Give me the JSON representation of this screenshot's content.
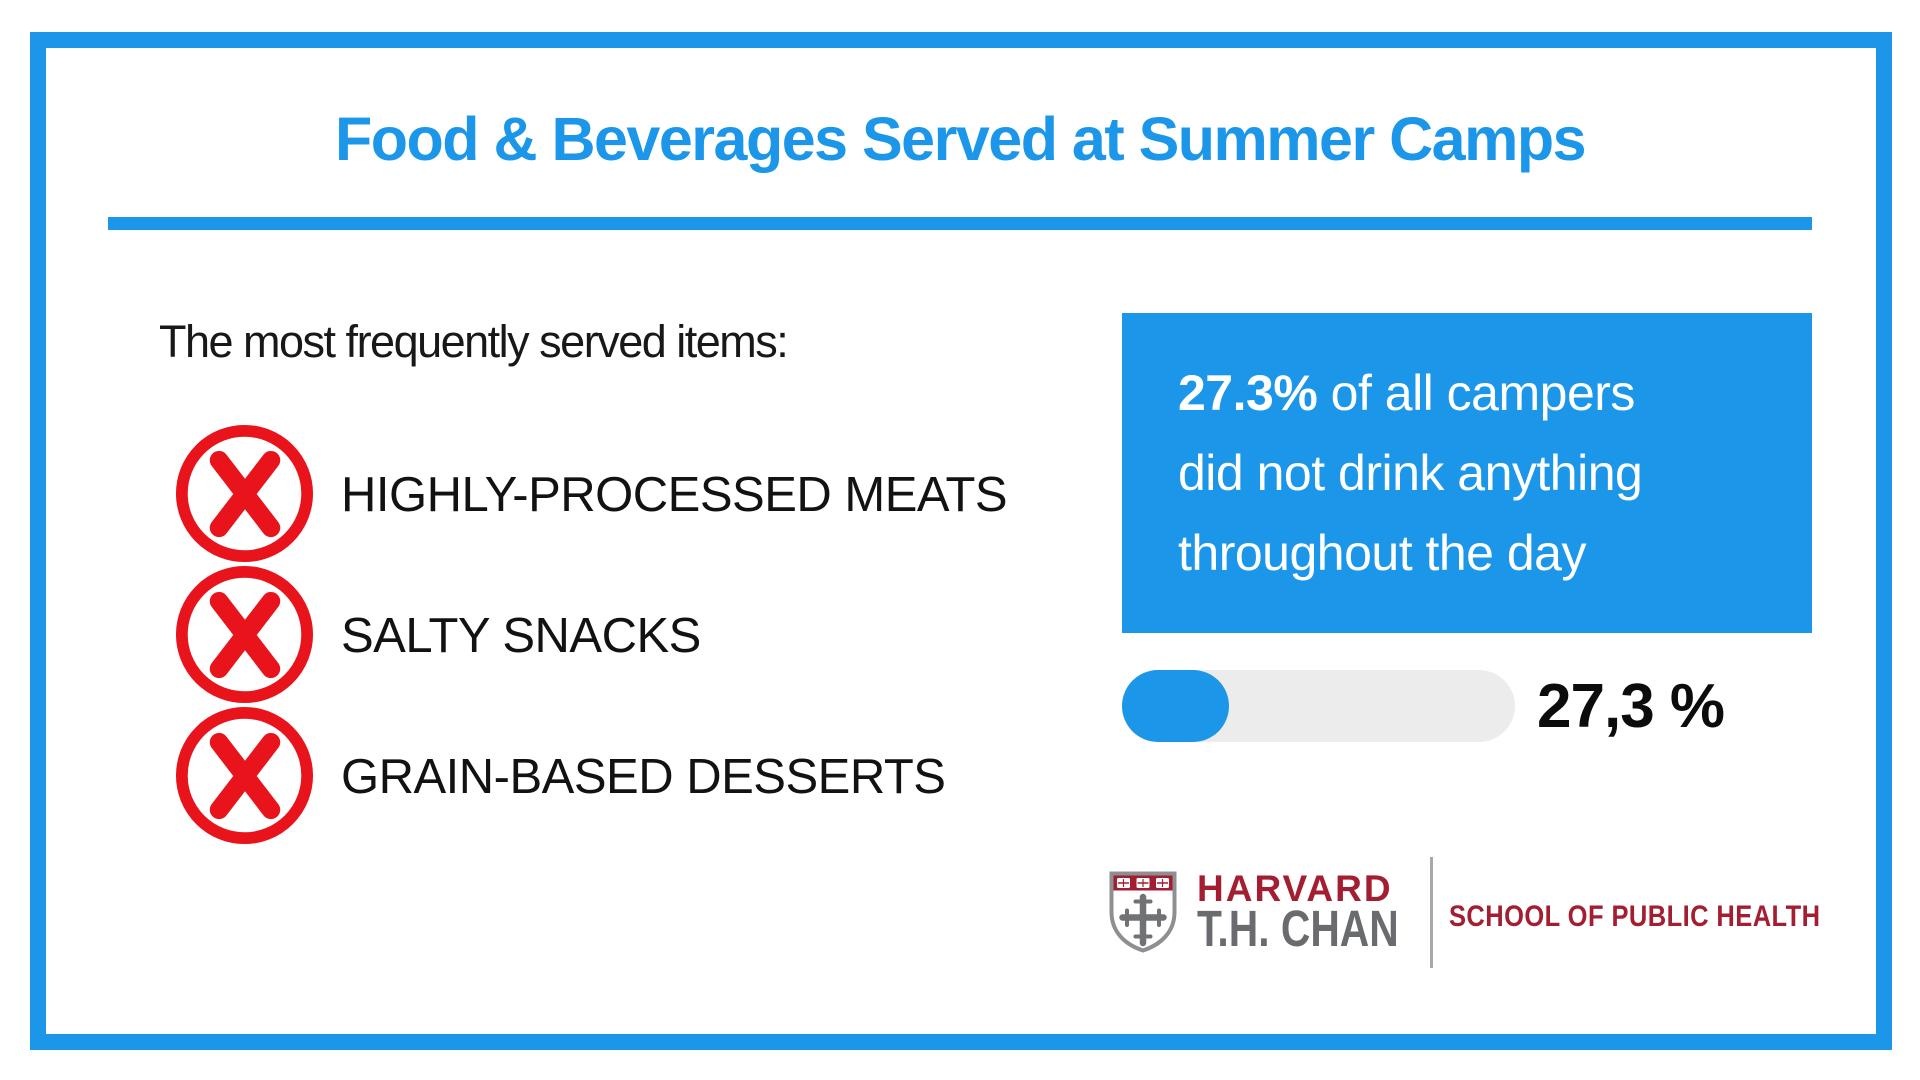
{
  "page": {
    "title": "Food & Beverages Served at Summer Camps"
  },
  "left_panel": {
    "heading": "The most frequently served items:",
    "items": [
      "HIGHLY-PROCESSED MEATS",
      "SALTY SNACKS",
      "GRAIN-BASED DESSERTS"
    ]
  },
  "right_panel": {
    "info_box": {
      "stat": "27.3%",
      "line1_rest": " of all campers",
      "line2": "did not drink anything",
      "line3": "throughout the day"
    },
    "progress": {
      "percent": 27.3,
      "label": "27,3 %"
    }
  },
  "logo": {
    "institution": "HARVARD",
    "name": "T.H. CHAN",
    "school": "SCHOOL OF PUBLIC HEALTH"
  },
  "colors": {
    "accent_blue": "#1C96E8",
    "alert_red": "#E8131B",
    "harvard_crimson": "#A41E31",
    "logo_gray": "#6A6B6E",
    "track_gray": "#ECECEC",
    "ink": "#121212"
  }
}
